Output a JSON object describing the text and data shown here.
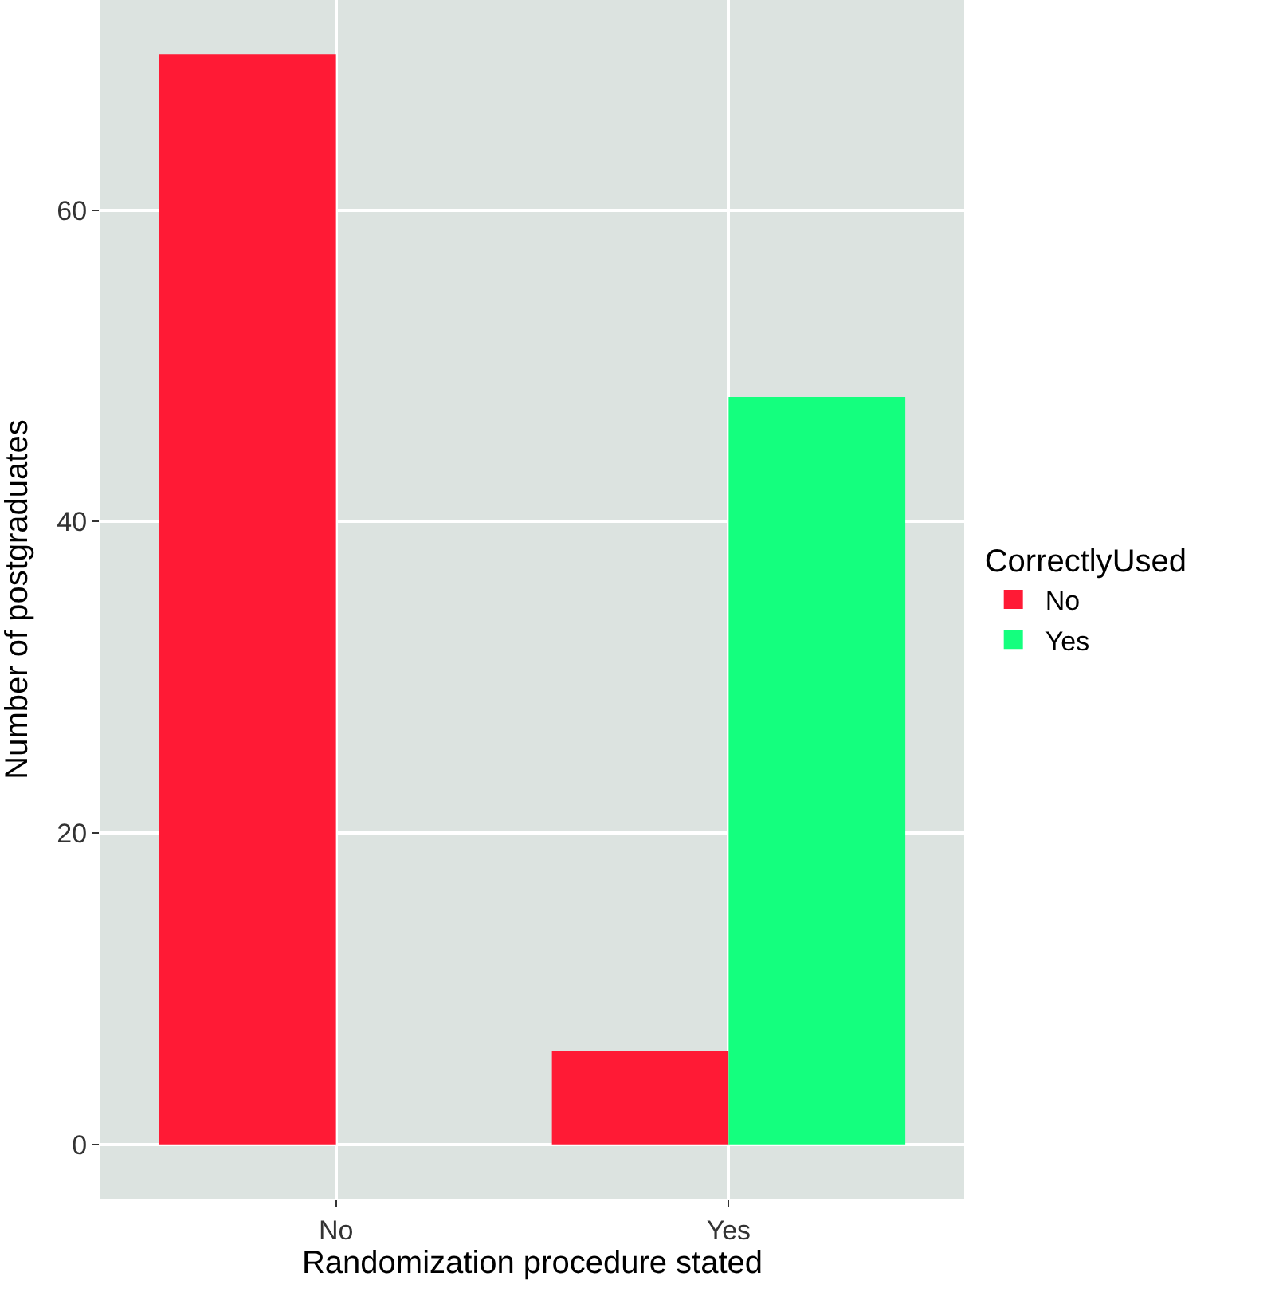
{
  "chart_data": {
    "type": "bar",
    "xlabel": "Randomization procedure stated",
    "ylabel": "Number of postgraduates",
    "legend_title": "CorrectlyUsed",
    "categories": [
      "No",
      "Yes"
    ],
    "series": [
      {
        "name": "No",
        "color": "#ff1a35",
        "values": [
          70,
          6
        ]
      },
      {
        "name": "Yes",
        "color": "#14ff7e",
        "values": [
          0,
          48
        ]
      }
    ],
    "ylim": [
      -3.5,
      73.5
    ],
    "yticks": [
      0,
      20,
      40,
      60
    ],
    "grid": true,
    "legend": "right"
  }
}
